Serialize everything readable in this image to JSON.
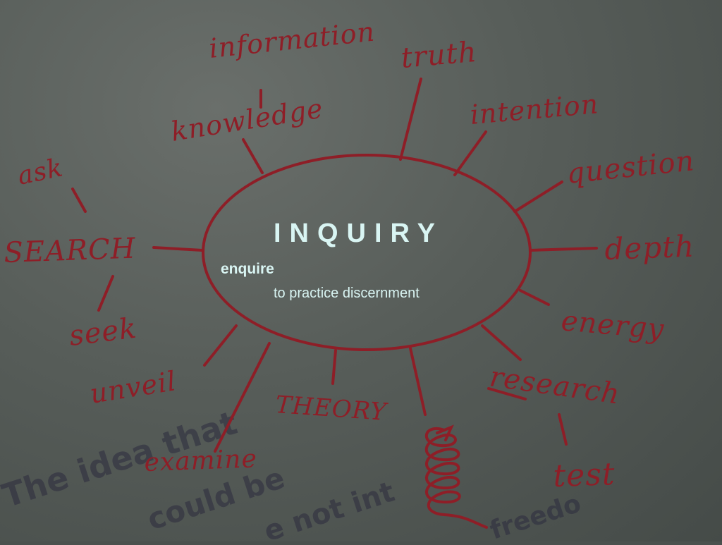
{
  "slide": {
    "title": "INQUIRY",
    "subtitle_bold": "enquire",
    "subtitle": "to practice discernment"
  },
  "mindmap": {
    "words": {
      "information": "information",
      "knowledge": "knowledge",
      "truth": "truth",
      "intention": "intention",
      "question": "question",
      "depth": "depth",
      "energy": "energy",
      "research": "research",
      "test": "test",
      "theory": "THEORY",
      "examine": "examine",
      "unveil": "unveil",
      "seek": "seek",
      "search": "SEARCH",
      "ask": "ask"
    }
  },
  "background_text": {
    "line1": "The idea that",
    "line2": "could be",
    "line3": "e not int",
    "line4": "freedo"
  },
  "colors": {
    "ink": "#8e1e27",
    "title_text": "#d9f5f3",
    "background": "#565c58"
  }
}
